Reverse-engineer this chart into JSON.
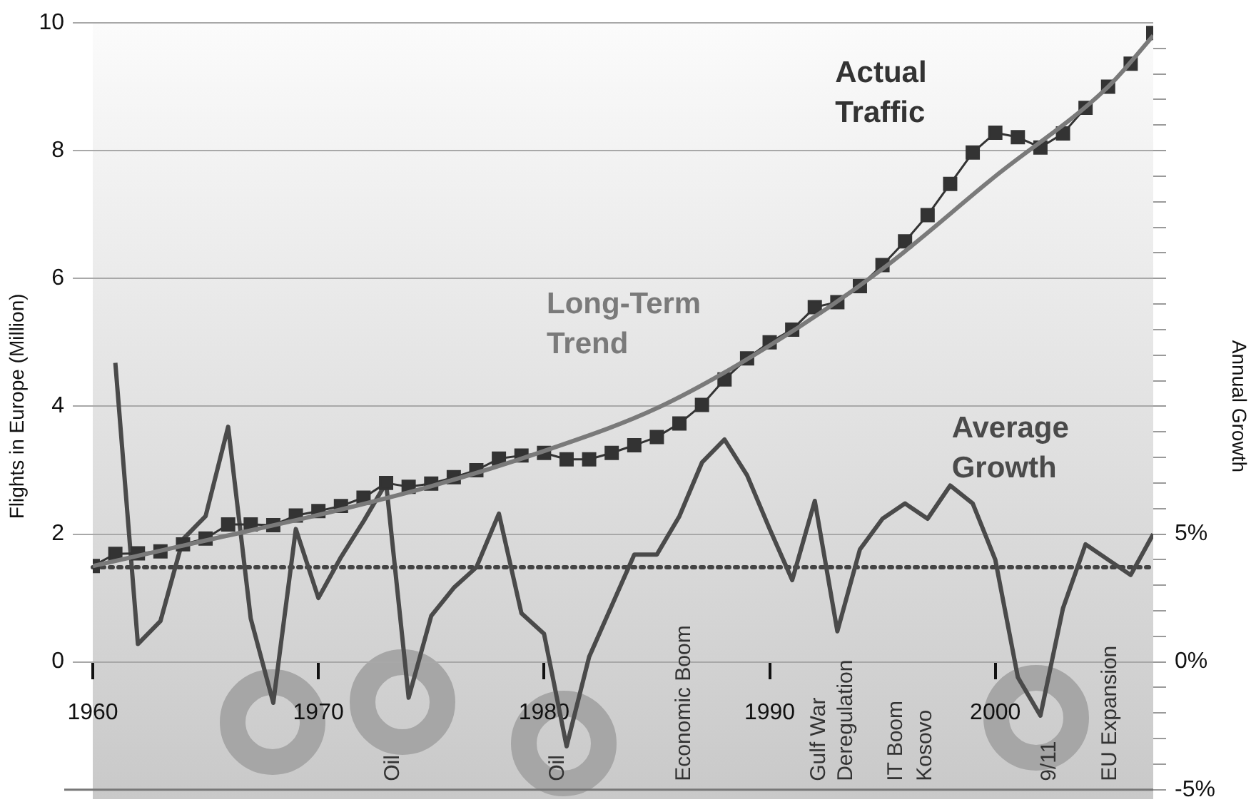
{
  "chart_data": {
    "type": "line",
    "ylabel": "Flights in Europe (Million)",
    "y2label": "Annual Growth",
    "x": [
      1960,
      1961,
      1962,
      1963,
      1964,
      1965,
      1966,
      1967,
      1968,
      1969,
      1970,
      1971,
      1972,
      1973,
      1974,
      1975,
      1976,
      1977,
      1978,
      1979,
      1980,
      1981,
      1982,
      1983,
      1984,
      1985,
      1986,
      1987,
      1988,
      1989,
      1990,
      1991,
      1992,
      1993,
      1994,
      1995,
      1996,
      1997,
      1998,
      1999,
      2000,
      2001,
      2002,
      2003,
      2004,
      2005,
      2006,
      2007
    ],
    "xlim": [
      1960,
      2007
    ],
    "xticks": [
      1960,
      1970,
      1980,
      1990,
      2000
    ],
    "ylim": [
      -2,
      10
    ],
    "yticks": [
      0,
      2,
      4,
      6,
      8,
      10
    ],
    "y2lim": [
      -5,
      25
    ],
    "y2ticks": [
      {
        "value": -5,
        "label": "-5%"
      },
      {
        "value": -4,
        "label": null
      },
      {
        "value": -3,
        "label": null
      },
      {
        "value": -2,
        "label": null
      },
      {
        "value": -1,
        "label": null
      },
      {
        "value": 0,
        "label": "0%"
      },
      {
        "value": 1,
        "label": null
      },
      {
        "value": 2,
        "label": null
      },
      {
        "value": 3,
        "label": null
      },
      {
        "value": 4,
        "label": null
      },
      {
        "value": 5,
        "label": "5%"
      },
      {
        "value": 6,
        "label": null
      },
      {
        "value": 7,
        "label": null
      },
      {
        "value": 8,
        "label": null
      },
      {
        "value": 9,
        "label": null
      },
      {
        "value": 10,
        "label": null
      },
      {
        "value": 11,
        "label": null
      },
      {
        "value": 12,
        "label": null
      },
      {
        "value": 13,
        "label": null
      },
      {
        "value": 14,
        "label": null
      },
      {
        "value": 15,
        "label": null
      },
      {
        "value": 16,
        "label": null
      },
      {
        "value": 17,
        "label": null
      },
      {
        "value": 18,
        "label": null
      },
      {
        "value": 19,
        "label": null
      },
      {
        "value": 20,
        "label": null
      },
      {
        "value": 21,
        "label": null
      },
      {
        "value": 22,
        "label": null
      },
      {
        "value": 23,
        "label": null
      },
      {
        "value": 24,
        "label": null
      }
    ],
    "grid": "y",
    "legend": false,
    "series": [
      {
        "name": "Actual Traffic",
        "color": "#333333",
        "marker": "square",
        "values": [
          1.5,
          1.69,
          1.7,
          1.73,
          1.84,
          1.93,
          2.15,
          2.15,
          2.14,
          2.29,
          2.36,
          2.44,
          2.57,
          2.8,
          2.74,
          2.79,
          2.89,
          3.0,
          3.18,
          3.23,
          3.27,
          3.17,
          3.17,
          3.27,
          3.39,
          3.52,
          3.73,
          4.02,
          4.42,
          4.75,
          5.0,
          5.2,
          5.55,
          5.63,
          5.88,
          6.21,
          6.58,
          6.99,
          7.48,
          7.97,
          8.28,
          8.21,
          8.05,
          8.27,
          8.67,
          9.0,
          9.36,
          9.84
        ]
      },
      {
        "name": "Long-Term Trend",
        "color": "#7a7a7a",
        "marker": "none",
        "x": [
          1960,
          1965,
          1970,
          1975,
          1980,
          1985,
          1990,
          1995,
          2000,
          2005,
          2007
        ],
        "values": [
          1.5,
          1.9,
          2.3,
          2.75,
          3.3,
          3.97,
          4.95,
          6.15,
          7.6,
          9.0,
          9.8
        ]
      },
      {
        "name": "Average Growth",
        "color": "#4a4a4a",
        "marker": "none",
        "axis": "y2",
        "values": [
          null,
          11.7,
          0.7,
          1.6,
          4.8,
          5.7,
          9.2,
          1.7,
          -1.6,
          5.2,
          2.5,
          4.1,
          5.5,
          7.0,
          -1.4,
          1.8,
          2.9,
          3.7,
          5.8,
          1.9,
          1.1,
          -3.3,
          0.2,
          2.2,
          4.2,
          4.2,
          5.7,
          7.8,
          8.7,
          7.3,
          5.2,
          3.2,
          6.3,
          1.2,
          4.4,
          5.6,
          6.2,
          5.6,
          6.9,
          6.2,
          4.0,
          -0.6,
          -2.1,
          2.1,
          4.6,
          4.0,
          3.4,
          5.0
        ]
      }
    ],
    "ref_lines": [
      {
        "axis": "y2",
        "value": 3.7,
        "color": "#444444",
        "line_style": "dotted"
      }
    ],
    "annotations": [
      "Oil",
      "Oil",
      "Economic Boom",
      "Gulf War",
      "Deregulation",
      "IT Boom",
      "Kosovo",
      "9/11",
      "EU Expansion"
    ]
  }
}
